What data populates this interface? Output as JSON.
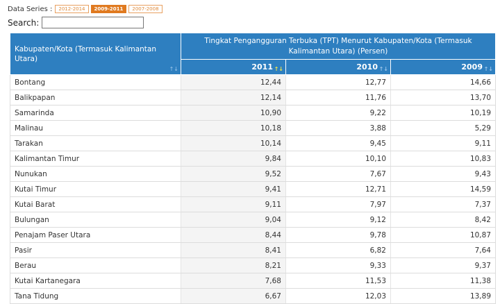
{
  "series": {
    "label": "Data Series :",
    "options": [
      "2012-2014",
      "2009-2011",
      "2007-2008"
    ],
    "active_index": 1
  },
  "search": {
    "label": "Search:",
    "value": ""
  },
  "table": {
    "region_header": "Kabupaten/Kota (Termasuk Kalimantan Utara)",
    "group_header": "Tingkat Pengangguran Terbuka (TPT) Menurut Kabupaten/Kota (Termasuk Kalimantan Utara) (Persen)",
    "years": [
      "2011",
      "2010",
      "2009"
    ],
    "sort_icon": "sort-arrows-icon",
    "rows": [
      {
        "region": "Bontang",
        "v": [
          "12,44",
          "12,77",
          "14,66"
        ]
      },
      {
        "region": "Balikpapan",
        "v": [
          "12,14",
          "11,76",
          "13,70"
        ]
      },
      {
        "region": "Samarinda",
        "v": [
          "10,90",
          "9,22",
          "10,19"
        ]
      },
      {
        "region": "Malinau",
        "v": [
          "10,18",
          "3,88",
          "5,29"
        ]
      },
      {
        "region": "Tarakan",
        "v": [
          "10,14",
          "9,45",
          "9,11"
        ]
      },
      {
        "region": "Kalimantan Timur",
        "v": [
          "9,84",
          "10,10",
          "10,83"
        ]
      },
      {
        "region": "Nunukan",
        "v": [
          "9,52",
          "7,67",
          "9,43"
        ]
      },
      {
        "region": "Kutai Timur",
        "v": [
          "9,41",
          "12,71",
          "14,59"
        ]
      },
      {
        "region": "Kutai Barat",
        "v": [
          "9,11",
          "7,97",
          "7,37"
        ]
      },
      {
        "region": "Bulungan",
        "v": [
          "9,04",
          "9,12",
          "8,42"
        ]
      },
      {
        "region": "Penajam Paser Utara",
        "v": [
          "8,44",
          "9,78",
          "10,87"
        ]
      },
      {
        "region": "Pasir",
        "v": [
          "8,41",
          "6,82",
          "7,64"
        ]
      },
      {
        "region": "Berau",
        "v": [
          "8,21",
          "9,33",
          "9,37"
        ]
      },
      {
        "region": "Kutai Kartanegara",
        "v": [
          "7,68",
          "11,53",
          "11,38"
        ]
      },
      {
        "region": "Tana Tidung",
        "v": [
          "6,67",
          "12,03",
          "13,89"
        ]
      }
    ]
  }
}
